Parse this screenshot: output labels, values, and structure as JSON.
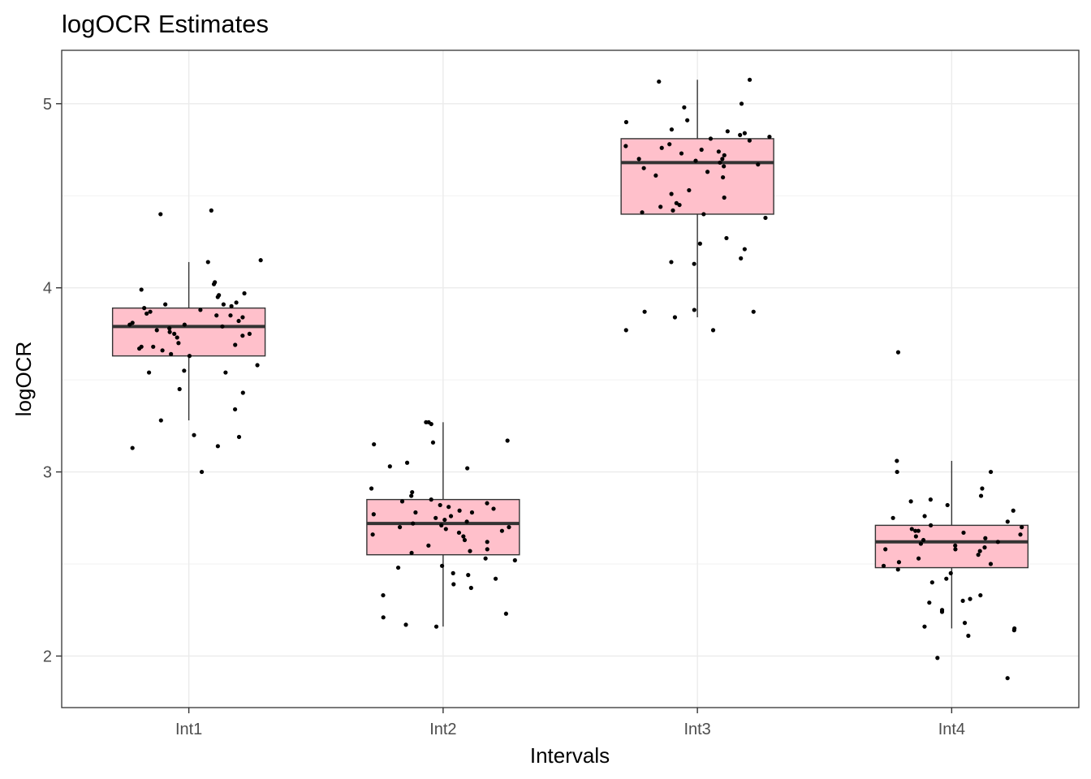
{
  "chart_data": {
    "type": "box",
    "title": "logOCR Estimates",
    "xlabel": "Intervals",
    "ylabel": "logOCR",
    "ylim": [
      1.72,
      5.29
    ],
    "yticks": [
      2,
      3,
      4,
      5
    ],
    "grid": true,
    "box_fill": "#FFC0CB",
    "box_border": "#333333",
    "point_color": "#000000",
    "categories": [
      "Int1",
      "Int2",
      "Int3",
      "Int4"
    ],
    "boxes": [
      {
        "category": "Int1",
        "whisker_low": 3.28,
        "q1": 3.63,
        "median": 3.79,
        "q3": 3.89,
        "whisker_high": 4.14
      },
      {
        "category": "Int2",
        "whisker_low": 2.16,
        "q1": 2.55,
        "median": 2.72,
        "q3": 2.85,
        "whisker_high": 3.27
      },
      {
        "category": "Int3",
        "whisker_low": 3.84,
        "q1": 4.4,
        "median": 4.68,
        "q3": 4.81,
        "whisker_high": 5.13
      },
      {
        "category": "Int4",
        "whisker_low": 2.15,
        "q1": 2.48,
        "median": 2.62,
        "q3": 2.71,
        "whisker_high": 3.06
      }
    ],
    "points": [
      [
        4.42,
        4.4,
        4.14,
        4.15,
        4.03,
        4.02,
        3.99,
        3.97,
        3.96,
        3.92,
        3.91,
        3.91,
        3.9,
        3.89,
        3.88,
        3.87,
        3.86,
        3.85,
        3.84,
        3.82,
        3.81,
        3.8,
        3.79,
        3.78,
        3.77,
        3.76,
        3.75,
        3.74,
        3.73,
        3.7,
        3.69,
        3.68,
        3.67,
        3.66,
        3.64,
        3.63,
        3.58,
        3.55,
        3.54,
        3.54,
        3.45,
        3.43,
        3.34,
        3.28,
        3.2,
        3.19,
        3.14,
        3.13,
        3.0,
        3.8,
        3.85,
        3.75,
        3.95,
        3.68
      ],
      [
        3.27,
        3.27,
        3.26,
        3.17,
        3.16,
        3.15,
        3.05,
        3.03,
        3.02,
        2.91,
        2.89,
        2.87,
        2.85,
        2.84,
        2.83,
        2.82,
        2.81,
        2.8,
        2.79,
        2.78,
        2.77,
        2.76,
        2.75,
        2.74,
        2.73,
        2.72,
        2.71,
        2.7,
        2.7,
        2.69,
        2.68,
        2.67,
        2.66,
        2.65,
        2.63,
        2.6,
        2.58,
        2.57,
        2.56,
        2.53,
        2.52,
        2.49,
        2.48,
        2.45,
        2.44,
        2.42,
        2.39,
        2.37,
        2.33,
        2.23,
        2.21,
        2.17,
        2.16,
        2.62,
        2.78
      ],
      [
        5.13,
        5.12,
        5.0,
        4.98,
        4.91,
        4.9,
        4.86,
        4.85,
        4.84,
        4.83,
        4.82,
        4.81,
        4.8,
        4.78,
        4.77,
        4.76,
        4.75,
        4.74,
        4.72,
        4.7,
        4.69,
        4.68,
        4.67,
        4.66,
        4.65,
        4.63,
        4.61,
        4.6,
        4.53,
        4.51,
        4.49,
        4.46,
        4.45,
        4.44,
        4.42,
        4.41,
        4.4,
        4.38,
        4.27,
        4.24,
        4.21,
        4.16,
        4.14,
        4.13,
        3.88,
        3.87,
        3.87,
        3.84,
        3.77,
        3.77,
        4.73,
        4.7
      ],
      [
        3.65,
        3.06,
        3.0,
        3.0,
        2.91,
        2.87,
        2.85,
        2.84,
        2.82,
        2.79,
        2.76,
        2.75,
        2.73,
        2.71,
        2.7,
        2.69,
        2.68,
        2.67,
        2.66,
        2.65,
        2.64,
        2.63,
        2.62,
        2.61,
        2.6,
        2.59,
        2.58,
        2.57,
        2.55,
        2.53,
        2.51,
        2.5,
        2.49,
        2.47,
        2.45,
        2.42,
        2.4,
        2.33,
        2.31,
        2.3,
        2.29,
        2.25,
        2.24,
        2.18,
        2.16,
        2.15,
        2.14,
        2.11,
        1.99,
        1.88,
        2.68,
        2.58
      ]
    ]
  }
}
